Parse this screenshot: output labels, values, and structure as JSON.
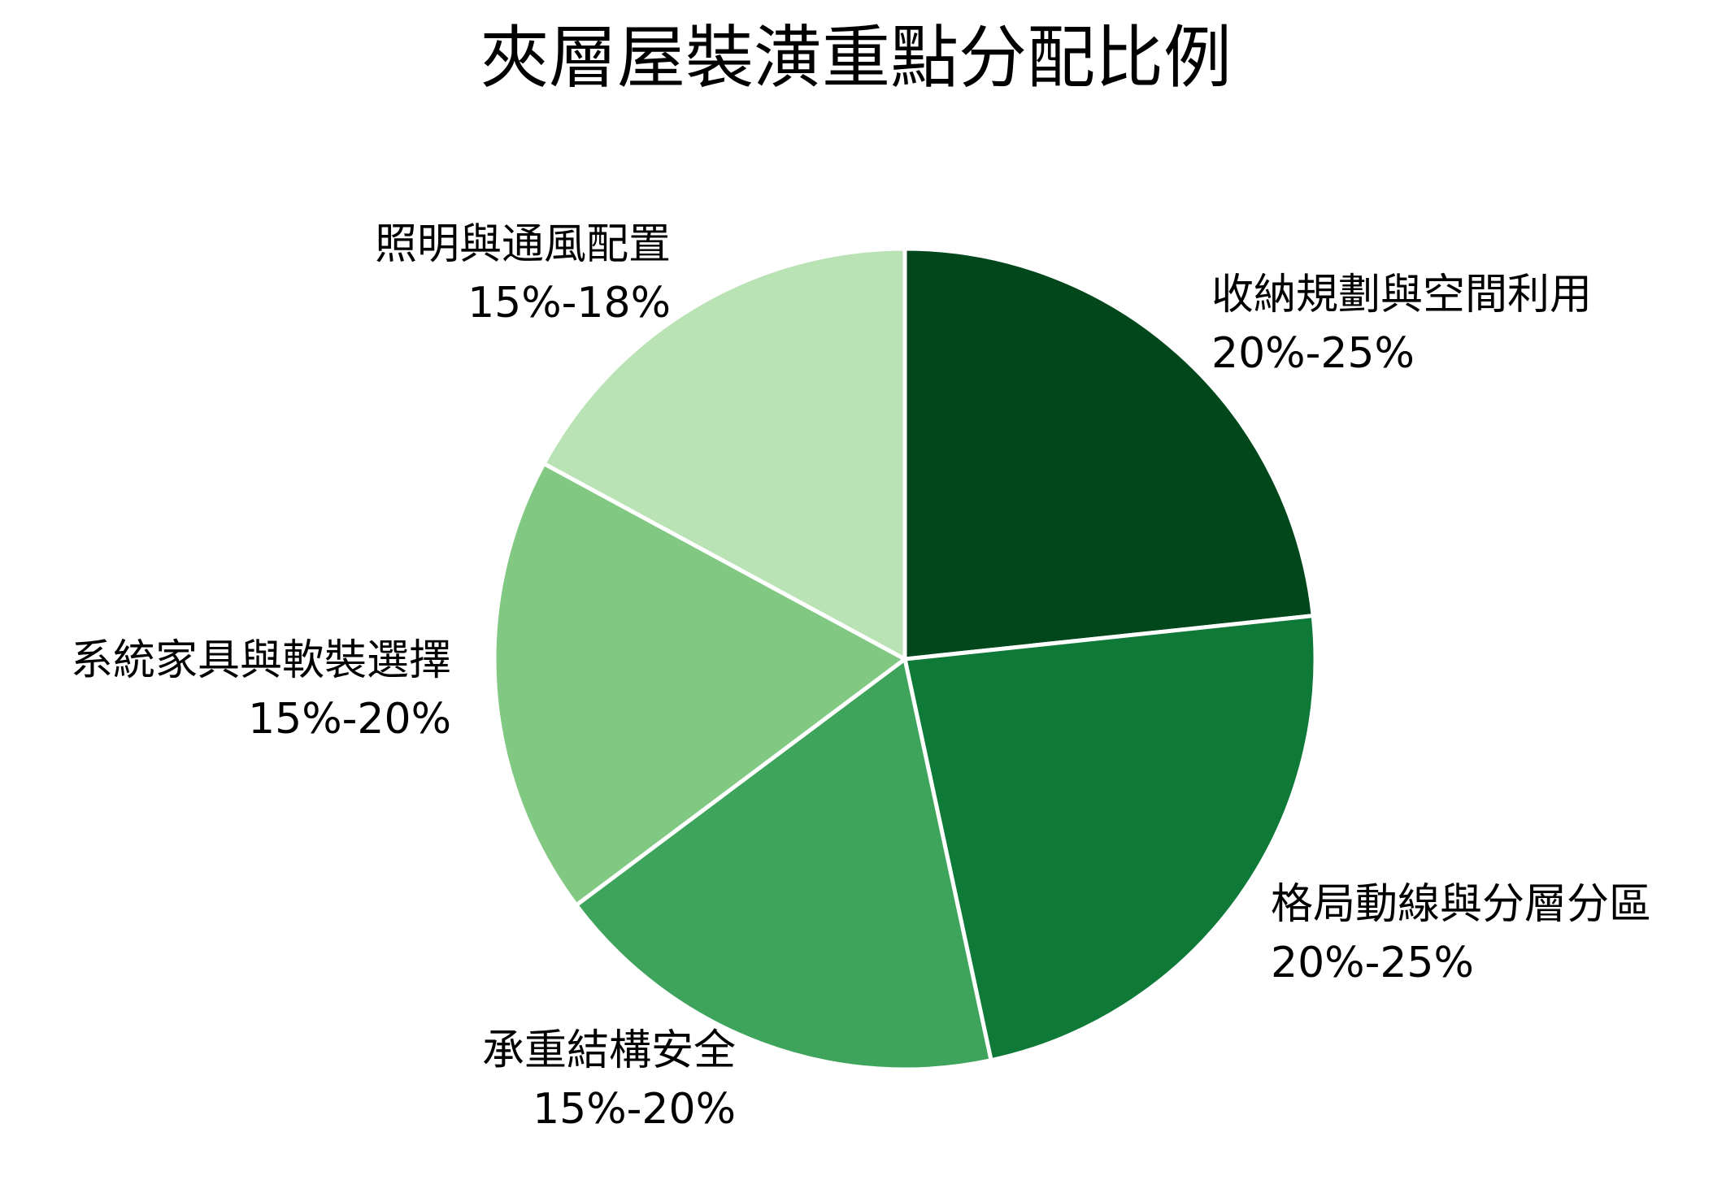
{
  "chart_data": {
    "type": "pie",
    "title": "夾層屋裝潢重點分配比例",
    "slices": [
      {
        "label": "收納規劃與空間利用",
        "range_text": "20%-25%",
        "value": 22.5,
        "color": "#00471b"
      },
      {
        "label": "格局動線與分層分區",
        "range_text": "20%-25%",
        "value": 22.5,
        "color": "#0f7a37"
      },
      {
        "label": "承重結構安全",
        "range_text": "15%-20%",
        "value": 17.5,
        "color": "#3ea45b"
      },
      {
        "label": "系統家具與軟裝選擇",
        "range_text": "15%-20%",
        "value": 17.5,
        "color": "#81c982"
      },
      {
        "label": "照明與通風配置",
        "range_text": "15%-18%",
        "value": 16.5,
        "color": "#b9e3b4"
      }
    ],
    "legend": "none",
    "grid": false
  }
}
